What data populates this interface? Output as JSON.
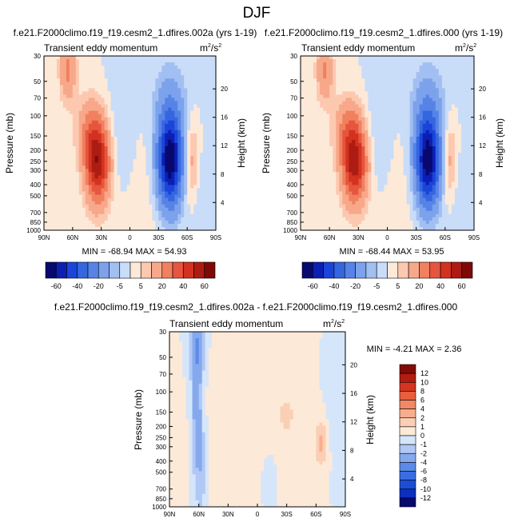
{
  "page_title": "DJF",
  "colors": {
    "neg": [
      "#08086e",
      "#0b1fb5",
      "#1b44d8",
      "#3566e0",
      "#5683e6",
      "#7ca2ec",
      "#a2bff2",
      "#c9dcf8"
    ],
    "pos": [
      "#fde9d8",
      "#fcc9b0",
      "#f8a88a",
      "#f1805f",
      "#e6553d",
      "#d2321f",
      "#ad1c12",
      "#7e0a07"
    ],
    "diff_neg": [
      "#08086e",
      "#0b2fc0",
      "#1b4ed8",
      "#3a6de2",
      "#5c8ae8",
      "#86a9ee",
      "#b0c8f4",
      "#d6e6fa"
    ],
    "diff_pos": [
      "#fde9d8",
      "#fbcfb5",
      "#f8ae8e",
      "#f28864",
      "#e75f3e",
      "#d43421",
      "#b11d12",
      "#830b07"
    ]
  },
  "chart_data": [
    {
      "type": "contour",
      "title": "f.e21.F2000climo.f19_f19.cesm2_1.dfires.002a (yrs 1-19)",
      "subtitle": "Transient eddy momentum",
      "units_base": "m",
      "units_exp1": "2",
      "units_slash": "/s",
      "units_exp2": "2",
      "ylabel": "Pressure (mb)",
      "ylabel_right": "Height (km)",
      "xticks": [
        "90N",
        "60N",
        "30N",
        "0",
        "30S",
        "60S",
        "90S"
      ],
      "yticks": [
        "30",
        "50",
        "70",
        "100",
        "150",
        "200",
        "250",
        "300",
        "400",
        "500",
        "700",
        "850",
        "1000"
      ],
      "height_ticks": [
        "4",
        "8",
        "12",
        "16",
        "20"
      ],
      "min_label": "MIN =",
      "min_value": "-68.94",
      "max_label": "MAX =",
      "max_value": "54.93",
      "colorbar_labels": [
        "-60",
        "-40",
        "-20",
        "-5",
        "5",
        "20",
        "40",
        "60"
      ]
    },
    {
      "type": "contour",
      "title": "f.e21.F2000climo.f19_f19.cesm2_1.dfires.000 (yrs 1-19)",
      "subtitle": "Transient eddy momentum",
      "units_base": "m",
      "units_exp1": "2",
      "units_slash": "/s",
      "units_exp2": "2",
      "ylabel": "Pressure (mb)",
      "ylabel_right": "Height (km)",
      "xticks": [
        "90N",
        "60N",
        "30N",
        "0",
        "30S",
        "60S",
        "90S"
      ],
      "yticks": [
        "30",
        "50",
        "70",
        "100",
        "150",
        "200",
        "250",
        "300",
        "400",
        "500",
        "700",
        "850",
        "1000"
      ],
      "height_ticks": [
        "4",
        "8",
        "12",
        "16",
        "20"
      ],
      "min_label": "MIN =",
      "min_value": "-68.44",
      "max_label": "MAX =",
      "max_value": "53.95",
      "colorbar_labels": [
        "-60",
        "-40",
        "-20",
        "-5",
        "5",
        "20",
        "40",
        "60"
      ]
    },
    {
      "type": "contour",
      "title": "f.e21.F2000climo.f19_f19.cesm2_1.dfires.002a - f.e21.F2000climo.f19_f19.cesm2_1.dfires.000",
      "subtitle": "Transient eddy momentum",
      "units_base": "m",
      "units_exp1": "2",
      "units_slash": "/s",
      "units_exp2": "2",
      "ylabel": "Pressure (mb)",
      "ylabel_right": "Height (km)",
      "xticks": [
        "90N",
        "60N",
        "30N",
        "0",
        "30S",
        "60S",
        "90S"
      ],
      "yticks": [
        "30",
        "50",
        "70",
        "100",
        "150",
        "200",
        "250",
        "300",
        "400",
        "500",
        "700",
        "850",
        "1000"
      ],
      "height_ticks": [
        "4",
        "8",
        "12",
        "16",
        "20"
      ],
      "min_label": "MIN =",
      "min_value": "-4.21",
      "max_label": "MAX =",
      "max_value": "2.36",
      "colorbar_labels": [
        "12",
        "10",
        "8",
        "6",
        "4",
        "2",
        "1",
        "0",
        "-1",
        "-2",
        "-4",
        "-6",
        "-8",
        "-10",
        "-12"
      ]
    }
  ]
}
